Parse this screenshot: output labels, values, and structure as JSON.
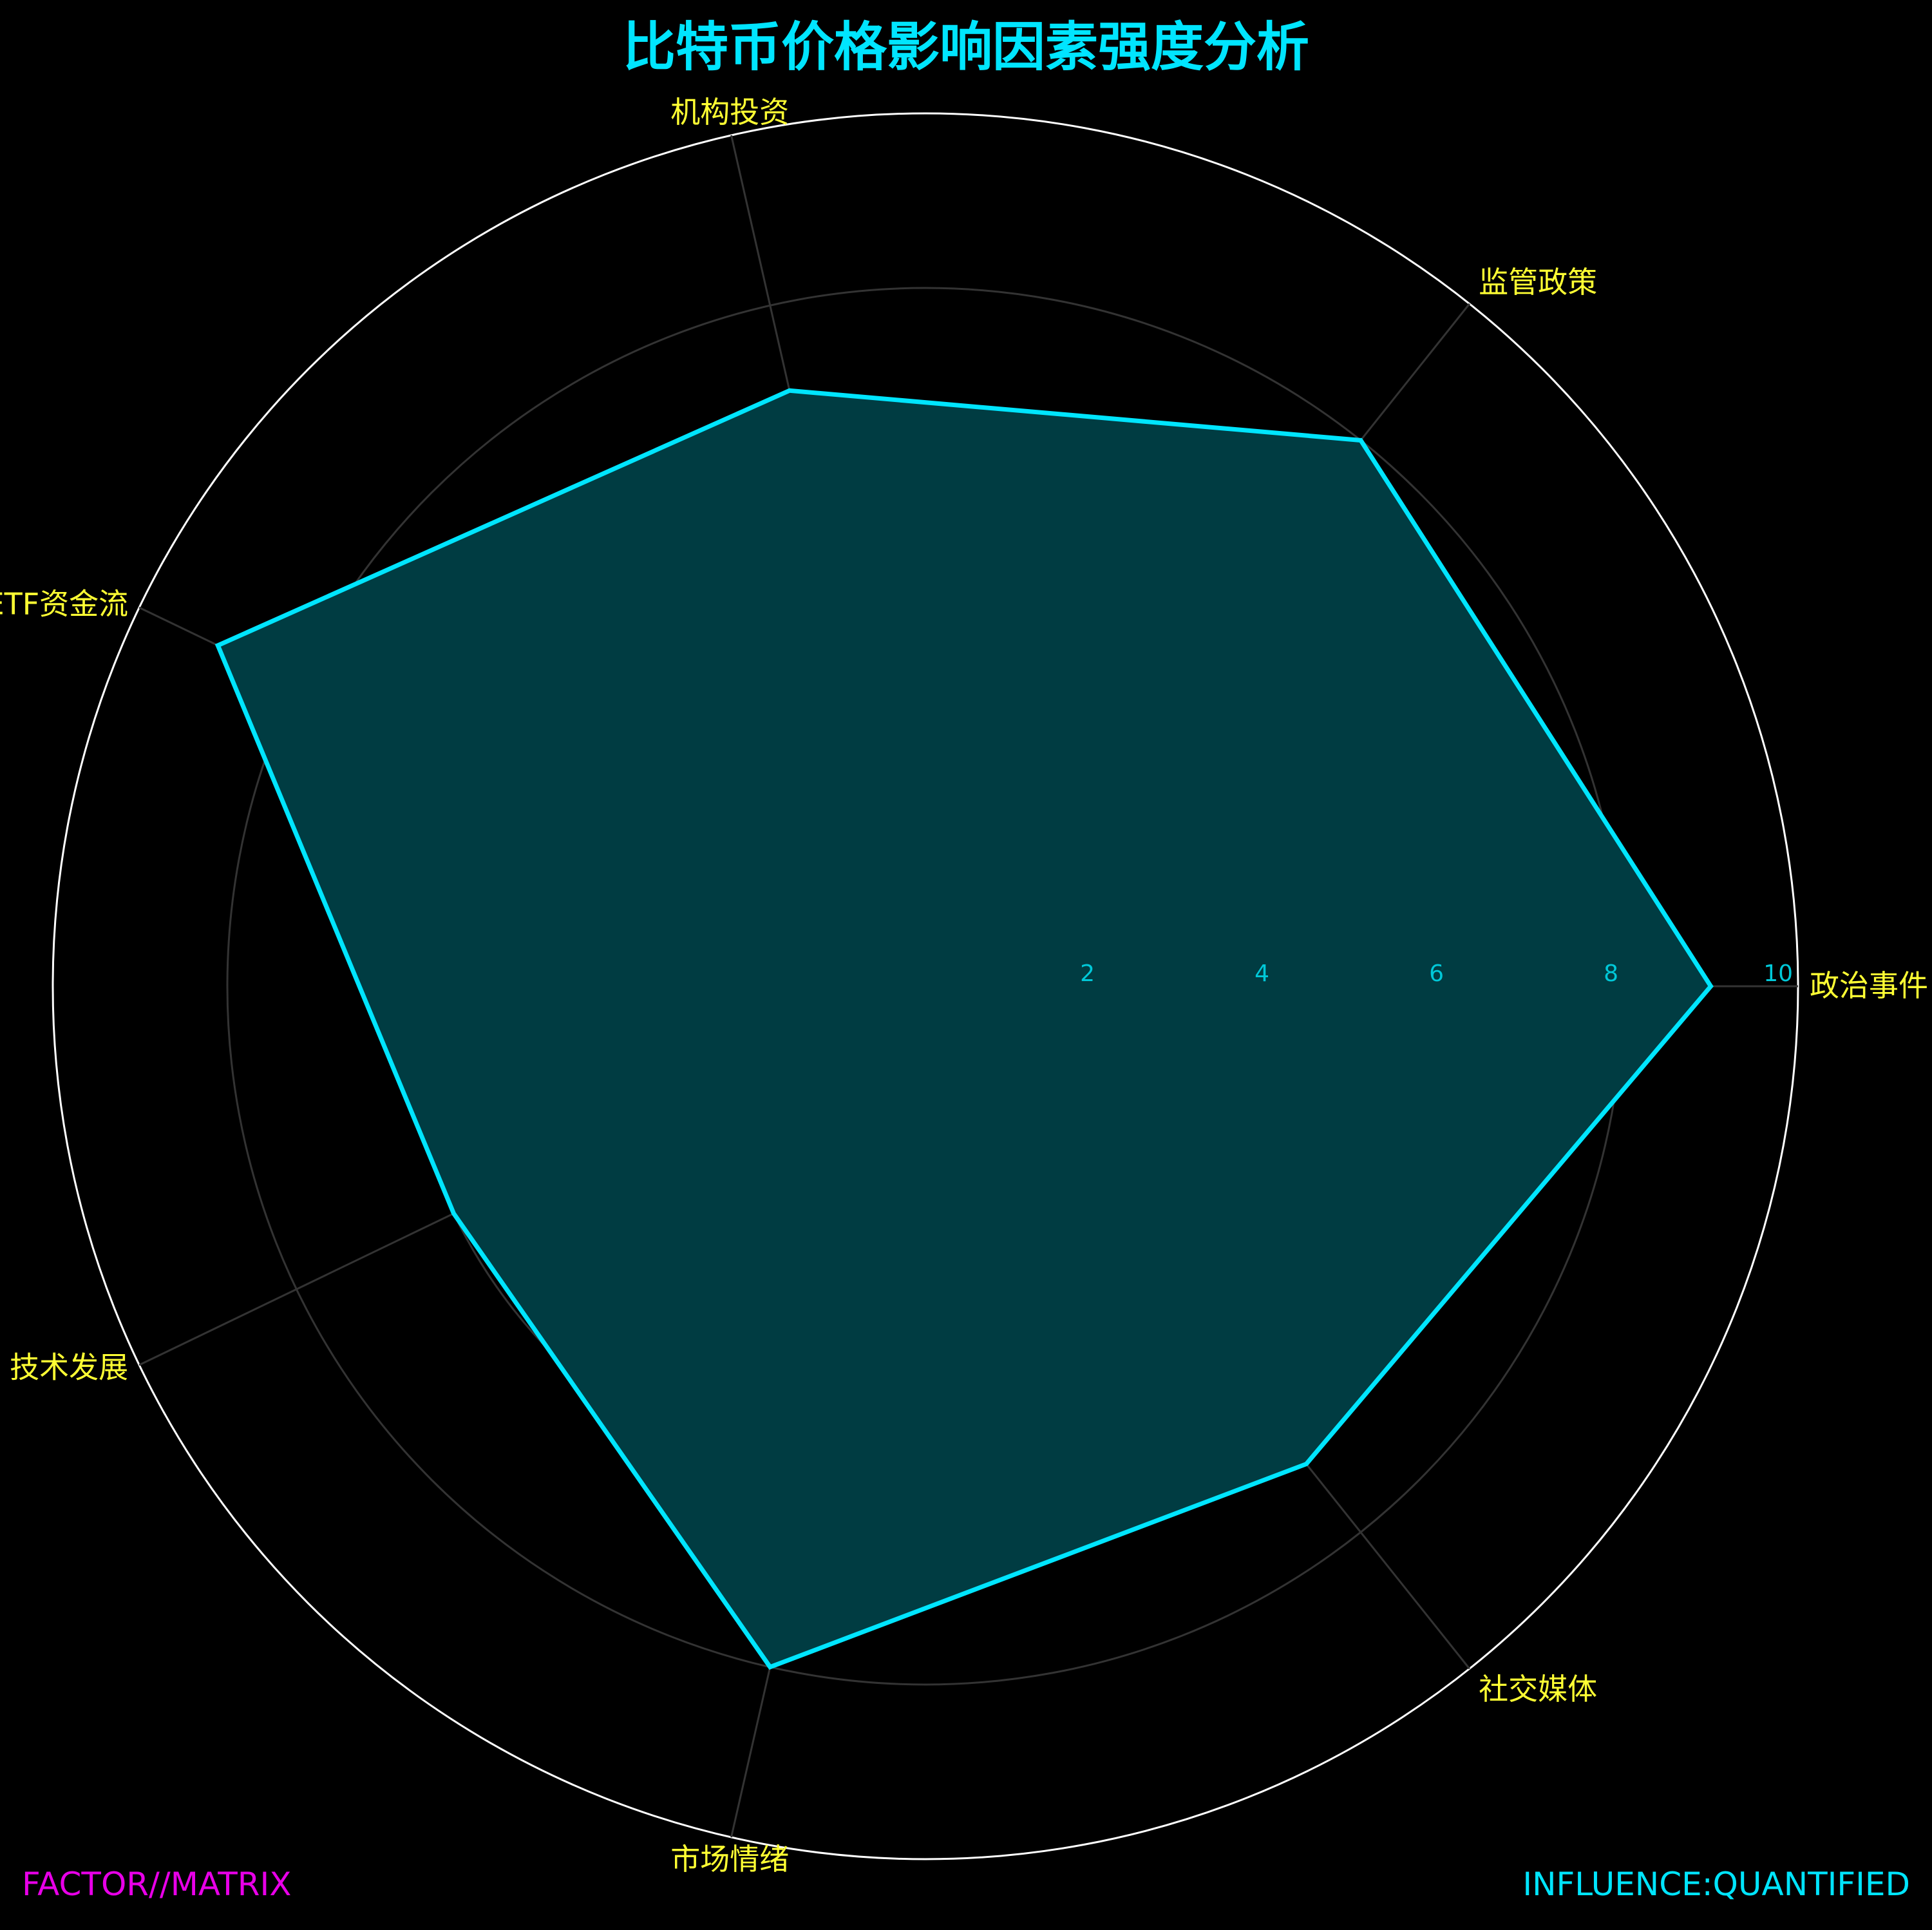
{
  "chart_data": {
    "type": "radar",
    "title": "比特币价格影响因素强度分析",
    "categories": [
      "政治事件",
      "监管政策",
      "机构投资",
      "ETF资金流",
      "技术发展",
      "市场情绪",
      "社交媒体"
    ],
    "series": [
      {
        "values": [
          9.0,
          8.0,
          7.0,
          9.0,
          6.0,
          8.0,
          7.0
        ]
      }
    ],
    "rlim": [
      0,
      10
    ],
    "rticks": [
      2,
      4,
      6,
      8,
      10
    ],
    "start_angle_deg": 0,
    "direction": "counterclockwise",
    "grid": true,
    "legend": "none",
    "colors": {
      "background": "#000000",
      "series_line": "#00e5ff",
      "series_fill": "#003c42",
      "category_labels": "#ffff33",
      "tick_labels": "#00c8d8",
      "grid": "#333333",
      "outer_ring": "#ffffff"
    }
  },
  "footer": {
    "left_text": "FACTOR//MATRIX",
    "right_text": "INFLUENCE:QUANTIFIED"
  }
}
